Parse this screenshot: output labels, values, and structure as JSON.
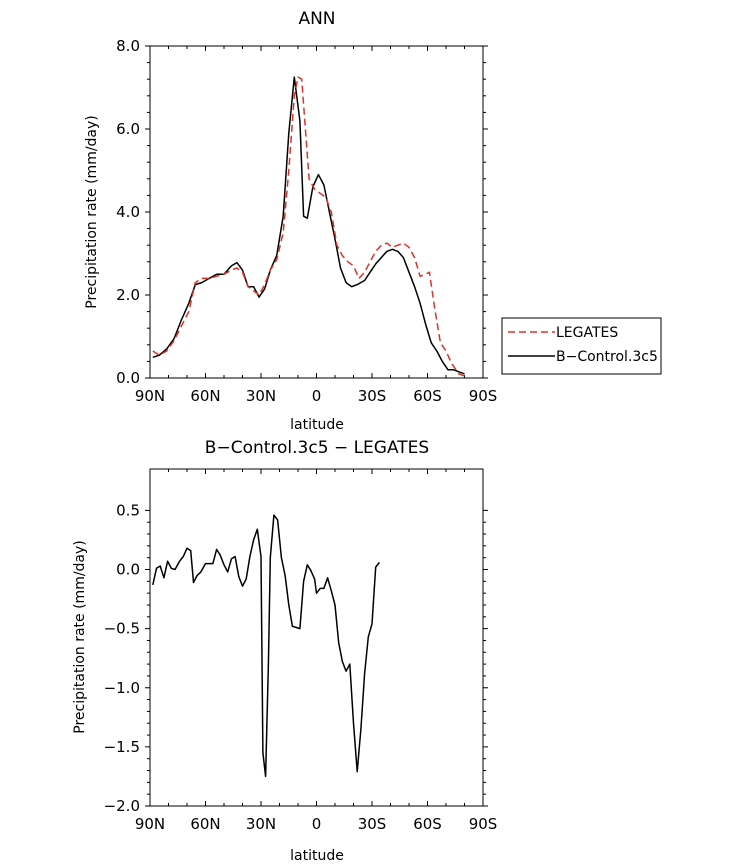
{
  "chart_data": [
    {
      "type": "line",
      "title": "ANN",
      "xlabel": "latitude",
      "ylabel": "Precipitation rate (mm/day)",
      "xlim": [
        -90,
        90
      ],
      "ylim": [
        0,
        8
      ],
      "x_ticks": [
        {
          "value": -90,
          "label": "90N"
        },
        {
          "value": -60,
          "label": "60N"
        },
        {
          "value": -30,
          "label": "30N"
        },
        {
          "value": 0,
          "label": "0"
        },
        {
          "value": 30,
          "label": "30S"
        },
        {
          "value": 60,
          "label": "60S"
        },
        {
          "value": 90,
          "label": "90S"
        }
      ],
      "y_ticks": [
        {
          "value": 0,
          "label": "0.0"
        },
        {
          "value": 2,
          "label": "2.0"
        },
        {
          "value": 4,
          "label": "4.0"
        },
        {
          "value": 6,
          "label": "6.0"
        },
        {
          "value": 8,
          "label": "8.0"
        }
      ],
      "legend": {
        "position": "right",
        "entries": [
          {
            "name": "LEGATES",
            "color": "#e0302a",
            "dash": "dashed"
          },
          {
            "name": "B−Control.3c5",
            "color": "#000000",
            "dash": "solid"
          }
        ]
      },
      "series": [
        {
          "name": "B−Control.3c5",
          "color": "#000000",
          "dash": "solid",
          "points": [
            [
              -88.5,
              0.5
            ],
            [
              -85,
              0.55
            ],
            [
              -81,
              0.7
            ],
            [
              -77,
              0.95
            ],
            [
              -73,
              1.4
            ],
            [
              -69,
              1.8
            ],
            [
              -65.5,
              2.25
            ],
            [
              -62,
              2.3
            ],
            [
              -58,
              2.4
            ],
            [
              -54,
              2.5
            ],
            [
              -50,
              2.5
            ],
            [
              -46,
              2.7
            ],
            [
              -43,
              2.78
            ],
            [
              -40,
              2.6
            ],
            [
              -37,
              2.2
            ],
            [
              -34,
              2.2
            ],
            [
              -31,
              1.95
            ],
            [
              -28,
              2.15
            ],
            [
              -25,
              2.6
            ],
            [
              -21.5,
              2.95
            ],
            [
              -18,
              3.9
            ],
            [
              -15,
              5.9
            ],
            [
              -12,
              7.25
            ],
            [
              -9,
              6.2
            ],
            [
              -7,
              3.9
            ],
            [
              -5,
              3.85
            ],
            [
              -2,
              4.6
            ],
            [
              1,
              4.9
            ],
            [
              4,
              4.65
            ],
            [
              7,
              4.0
            ],
            [
              10,
              3.35
            ],
            [
              13,
              2.65
            ],
            [
              16,
              2.3
            ],
            [
              19,
              2.2
            ],
            [
              22,
              2.25
            ],
            [
              26,
              2.35
            ],
            [
              29,
              2.55
            ],
            [
              32,
              2.75
            ],
            [
              35,
              2.9
            ],
            [
              38,
              3.05
            ],
            [
              41,
              3.1
            ],
            [
              44,
              3.05
            ],
            [
              47,
              2.9
            ],
            [
              50,
              2.55
            ],
            [
              53,
              2.2
            ],
            [
              56,
              1.8
            ],
            [
              59,
              1.3
            ],
            [
              62,
              0.85
            ],
            [
              65,
              0.65
            ],
            [
              68,
              0.4
            ],
            [
              71,
              0.2
            ],
            [
              74,
              0.2
            ],
            [
              77,
              0.15
            ],
            [
              80,
              0.1
            ]
          ]
        },
        {
          "name": "LEGATES",
          "color": "#e0302a",
          "dash": "dashed",
          "points": [
            [
              -88.5,
              0.65
            ],
            [
              -85,
              0.55
            ],
            [
              -81,
              0.65
            ],
            [
              -77,
              0.9
            ],
            [
              -73,
              1.25
            ],
            [
              -69,
              1.6
            ],
            [
              -65.5,
              2.3
            ],
            [
              -62,
              2.4
            ],
            [
              -58,
              2.4
            ],
            [
              -54,
              2.45
            ],
            [
              -50,
              2.5
            ],
            [
              -46,
              2.6
            ],
            [
              -43,
              2.65
            ],
            [
              -40,
              2.55
            ],
            [
              -37,
              2.2
            ],
            [
              -34,
              2.1
            ],
            [
              -31,
              2.0
            ],
            [
              -28,
              2.25
            ],
            [
              -25,
              2.6
            ],
            [
              -21.5,
              2.85
            ],
            [
              -18,
              3.5
            ],
            [
              -15,
              5.0
            ],
            [
              -12,
              6.8
            ],
            [
              -10,
              7.25
            ],
            [
              -8,
              7.2
            ],
            [
              -6,
              6.0
            ],
            [
              -4,
              4.8
            ],
            [
              -1,
              4.55
            ],
            [
              2,
              4.45
            ],
            [
              5,
              4.35
            ],
            [
              8,
              4.0
            ],
            [
              11,
              3.2
            ],
            [
              14,
              2.95
            ],
            [
              17,
              2.8
            ],
            [
              20,
              2.7
            ],
            [
              23,
              2.4
            ],
            [
              26,
              2.55
            ],
            [
              29,
              2.8
            ],
            [
              32,
              3.05
            ],
            [
              35,
              3.2
            ],
            [
              38,
              3.25
            ],
            [
              41,
              3.15
            ],
            [
              44,
              3.2
            ],
            [
              47,
              3.25
            ],
            [
              50,
              3.15
            ],
            [
              53,
              2.9
            ],
            [
              56,
              2.45
            ],
            [
              59,
              2.5
            ],
            [
              61,
              2.55
            ],
            [
              64,
              1.65
            ],
            [
              67,
              0.85
            ],
            [
              70,
              0.65
            ],
            [
              73,
              0.35
            ],
            [
              77,
              0.1
            ],
            [
              80,
              0.05
            ]
          ]
        }
      ]
    },
    {
      "type": "line",
      "title": "B−Control.3c5 − LEGATES",
      "xlabel": "latitude",
      "ylabel": "Precipitation rate (mm/day)",
      "xlim": [
        -90,
        90
      ],
      "ylim": [
        -2.0,
        0.85
      ],
      "x_ticks": [
        {
          "value": -90,
          "label": "90N"
        },
        {
          "value": -60,
          "label": "60N"
        },
        {
          "value": -30,
          "label": "30N"
        },
        {
          "value": 0,
          "label": "0"
        },
        {
          "value": 30,
          "label": "30S"
        },
        {
          "value": 60,
          "label": "60S"
        },
        {
          "value": 90,
          "label": "90S"
        }
      ],
      "y_ticks": [
        {
          "value": -2.0,
          "label": "−2.0"
        },
        {
          "value": -1.5,
          "label": "−1.5"
        },
        {
          "value": -1.0,
          "label": "−1.0"
        },
        {
          "value": -0.5,
          "label": "−0.5"
        },
        {
          "value": 0.0,
          "label": "0.0"
        },
        {
          "value": 0.5,
          "label": "0.5"
        }
      ],
      "series": [
        {
          "name": "B−Control.3c5 − LEGATES",
          "color": "#000000",
          "dash": "solid",
          "points": [
            [
              -88.5,
              -0.13
            ],
            [
              -86.5,
              0.01
            ],
            [
              -84.5,
              0.03
            ],
            [
              -82.5,
              -0.07
            ],
            [
              -80.5,
              0.07
            ],
            [
              -78.5,
              0.01
            ],
            [
              -76.5,
              0.0
            ],
            [
              -74,
              0.07
            ],
            [
              -72,
              0.11
            ],
            [
              -70,
              0.18
            ],
            [
              -68,
              0.16
            ],
            [
              -66.5,
              -0.11
            ],
            [
              -64.5,
              -0.05
            ],
            [
              -62.5,
              -0.02
            ],
            [
              -60,
              0.05
            ],
            [
              -58,
              0.05
            ],
            [
              -56,
              0.05
            ],
            [
              -54,
              0.17
            ],
            [
              -52,
              0.12
            ],
            [
              -50,
              0.04
            ],
            [
              -48,
              -0.02
            ],
            [
              -46,
              0.09
            ],
            [
              -44,
              0.11
            ],
            [
              -42,
              -0.06
            ],
            [
              -40,
              -0.14
            ],
            [
              -38,
              -0.08
            ],
            [
              -36,
              0.11
            ],
            [
              -34,
              0.25
            ],
            [
              -32,
              0.34
            ],
            [
              -30,
              0.11
            ],
            [
              -29,
              -1.55
            ],
            [
              -27.5,
              -1.75
            ],
            [
              -26,
              -0.8
            ],
            [
              -25,
              0.1
            ],
            [
              -23,
              0.46
            ],
            [
              -21,
              0.42
            ],
            [
              -19,
              0.1
            ],
            [
              -17,
              -0.05
            ],
            [
              -15,
              -0.3
            ],
            [
              -13,
              -0.48
            ],
            [
              -11,
              -0.49
            ],
            [
              -9,
              -0.5
            ],
            [
              -7,
              -0.1
            ],
            [
              -5,
              0.04
            ],
            [
              -3,
              -0.01
            ],
            [
              -1,
              -0.08
            ],
            [
              0,
              -0.2
            ],
            [
              2,
              -0.16
            ],
            [
              4,
              -0.16
            ],
            [
              6,
              -0.07
            ],
            [
              8,
              -0.18
            ],
            [
              10,
              -0.3
            ],
            [
              12,
              -0.62
            ],
            [
              14,
              -0.78
            ],
            [
              16,
              -0.86
            ],
            [
              18,
              -0.8
            ],
            [
              20,
              -1.3
            ],
            [
              22,
              -1.71
            ],
            [
              24,
              -1.35
            ],
            [
              26,
              -0.88
            ],
            [
              28,
              -0.57
            ],
            [
              30,
              -0.46
            ],
            [
              32,
              0.02
            ],
            [
              34,
              0.06
            ]
          ]
        }
      ]
    }
  ]
}
